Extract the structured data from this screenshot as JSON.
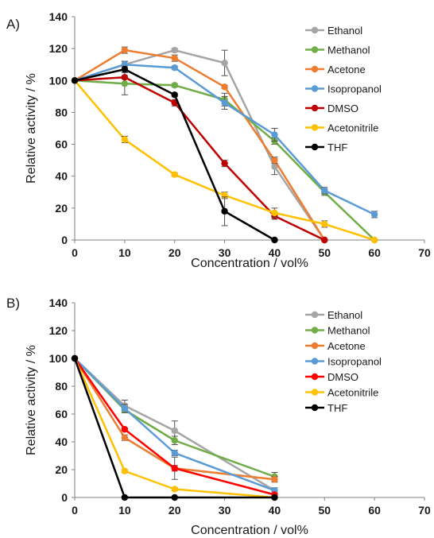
{
  "chart_data": [
    {
      "panel_label": "A)",
      "type": "line",
      "xlabel": "Concentration / vol%",
      "ylabel": "Relative activity / %",
      "xlim": [
        0,
        70
      ],
      "ylim": [
        0,
        140
      ],
      "xticks": [
        "0",
        "10",
        "20",
        "30",
        "40",
        "50",
        "60",
        "70"
      ],
      "yticks": [
        "0",
        "20",
        "40",
        "60",
        "80",
        "100",
        "120",
        "140"
      ],
      "grid": false,
      "legend_position": "top-right",
      "series": [
        {
          "name": "Ethanol",
          "color": "#a5a5a5",
          "points": [
            [
              0,
              100
            ],
            [
              10,
              110
            ],
            [
              20,
              119
            ],
            [
              30,
              111
            ],
            [
              40,
              46
            ],
            [
              50,
              0
            ]
          ],
          "errors": [
            0,
            2,
            1,
            8,
            5,
            0
          ]
        },
        {
          "name": "Methanol",
          "color": "#70ad47",
          "points": [
            [
              0,
              100
            ],
            [
              10,
              98
            ],
            [
              20,
              97
            ],
            [
              30,
              88
            ],
            [
              40,
              62
            ],
            [
              50,
              30
            ],
            [
              60,
              0
            ]
          ],
          "errors": [
            0,
            7,
            1,
            4,
            2,
            2,
            0
          ]
        },
        {
          "name": "Acetone",
          "color": "#ed7d31",
          "points": [
            [
              0,
              100
            ],
            [
              10,
              119
            ],
            [
              20,
              114
            ],
            [
              30,
              96
            ],
            [
              40,
              50
            ],
            [
              50,
              0
            ]
          ],
          "errors": [
            0,
            2,
            2,
            1,
            2,
            0
          ]
        },
        {
          "name": "Isopropanol",
          "color": "#5b9bd5",
          "points": [
            [
              0,
              100
            ],
            [
              10,
              110
            ],
            [
              20,
              108
            ],
            [
              30,
              86
            ],
            [
              40,
              66
            ],
            [
              50,
              31
            ],
            [
              60,
              16
            ]
          ],
          "errors": [
            0,
            2,
            1,
            4,
            4,
            2,
            2
          ]
        },
        {
          "name": "DMSO",
          "color": "#c00000",
          "points": [
            [
              0,
              100
            ],
            [
              10,
              102
            ],
            [
              20,
              86
            ],
            [
              30,
              48
            ],
            [
              40,
              15
            ],
            [
              50,
              0
            ]
          ],
          "errors": [
            0,
            1,
            2,
            2,
            2,
            0
          ]
        },
        {
          "name": "Acetonitrile",
          "color": "#ffc000",
          "points": [
            [
              0,
              100
            ],
            [
              10,
              63
            ],
            [
              20,
              41
            ],
            [
              30,
              28
            ],
            [
              40,
              17
            ],
            [
              50,
              10
            ],
            [
              60,
              0
            ]
          ],
          "errors": [
            0,
            2,
            1,
            2,
            3,
            2,
            0
          ]
        },
        {
          "name": "THF",
          "color": "#000000",
          "points": [
            [
              0,
              100
            ],
            [
              10,
              107
            ],
            [
              20,
              91
            ],
            [
              30,
              18
            ],
            [
              40,
              0
            ]
          ],
          "errors": [
            0,
            2,
            1,
            9,
            0
          ]
        }
      ]
    },
    {
      "panel_label": "B)",
      "type": "line",
      "xlabel": "Concentration / vol%",
      "ylabel": "Relative activity / %",
      "xlim": [
        0,
        70
      ],
      "ylim": [
        0,
        140
      ],
      "xticks": [
        "0",
        "10",
        "20",
        "30",
        "40",
        "50",
        "60",
        "70"
      ],
      "yticks": [
        "0",
        "20",
        "40",
        "60",
        "80",
        "100",
        "120",
        "140"
      ],
      "grid": false,
      "legend_position": "top-right",
      "series": [
        {
          "name": "Ethanol",
          "color": "#a5a5a5",
          "points": [
            [
              0,
              100
            ],
            [
              10,
              66
            ],
            [
              20,
              48
            ],
            [
              40,
              5
            ]
          ],
          "errors": [
            0,
            4,
            7,
            2
          ]
        },
        {
          "name": "Methanol",
          "color": "#70ad47",
          "points": [
            [
              0,
              100
            ],
            [
              10,
              63
            ],
            [
              20,
              41
            ],
            [
              40,
              15
            ]
          ],
          "errors": [
            0,
            2,
            3,
            3
          ]
        },
        {
          "name": "Acetone",
          "color": "#ed7d31",
          "points": [
            [
              0,
              100
            ],
            [
              10,
              43
            ],
            [
              20,
              21
            ],
            [
              40,
              13
            ]
          ],
          "errors": [
            0,
            2,
            8,
            2
          ]
        },
        {
          "name": "Isopropanol",
          "color": "#5b9bd5",
          "points": [
            [
              0,
              100
            ],
            [
              10,
              64
            ],
            [
              20,
              32
            ],
            [
              40,
              5
            ]
          ],
          "errors": [
            0,
            3,
            2,
            1
          ]
        },
        {
          "name": "DMSO",
          "color": "#ff0000",
          "points": [
            [
              0,
              100
            ],
            [
              10,
              49
            ],
            [
              20,
              21
            ],
            [
              40,
              2
            ]
          ],
          "errors": [
            0,
            1,
            2,
            1
          ]
        },
        {
          "name": "Acetonitrile",
          "color": "#ffc000",
          "points": [
            [
              0,
              100
            ],
            [
              10,
              19
            ],
            [
              20,
              6
            ],
            [
              40,
              0
            ]
          ],
          "errors": [
            0,
            1,
            1,
            0
          ]
        },
        {
          "name": "THF",
          "color": "#000000",
          "points": [
            [
              0,
              100
            ],
            [
              10,
              0
            ],
            [
              20,
              0
            ],
            [
              40,
              0
            ]
          ],
          "errors": [
            0,
            0,
            0,
            0
          ]
        }
      ]
    }
  ]
}
